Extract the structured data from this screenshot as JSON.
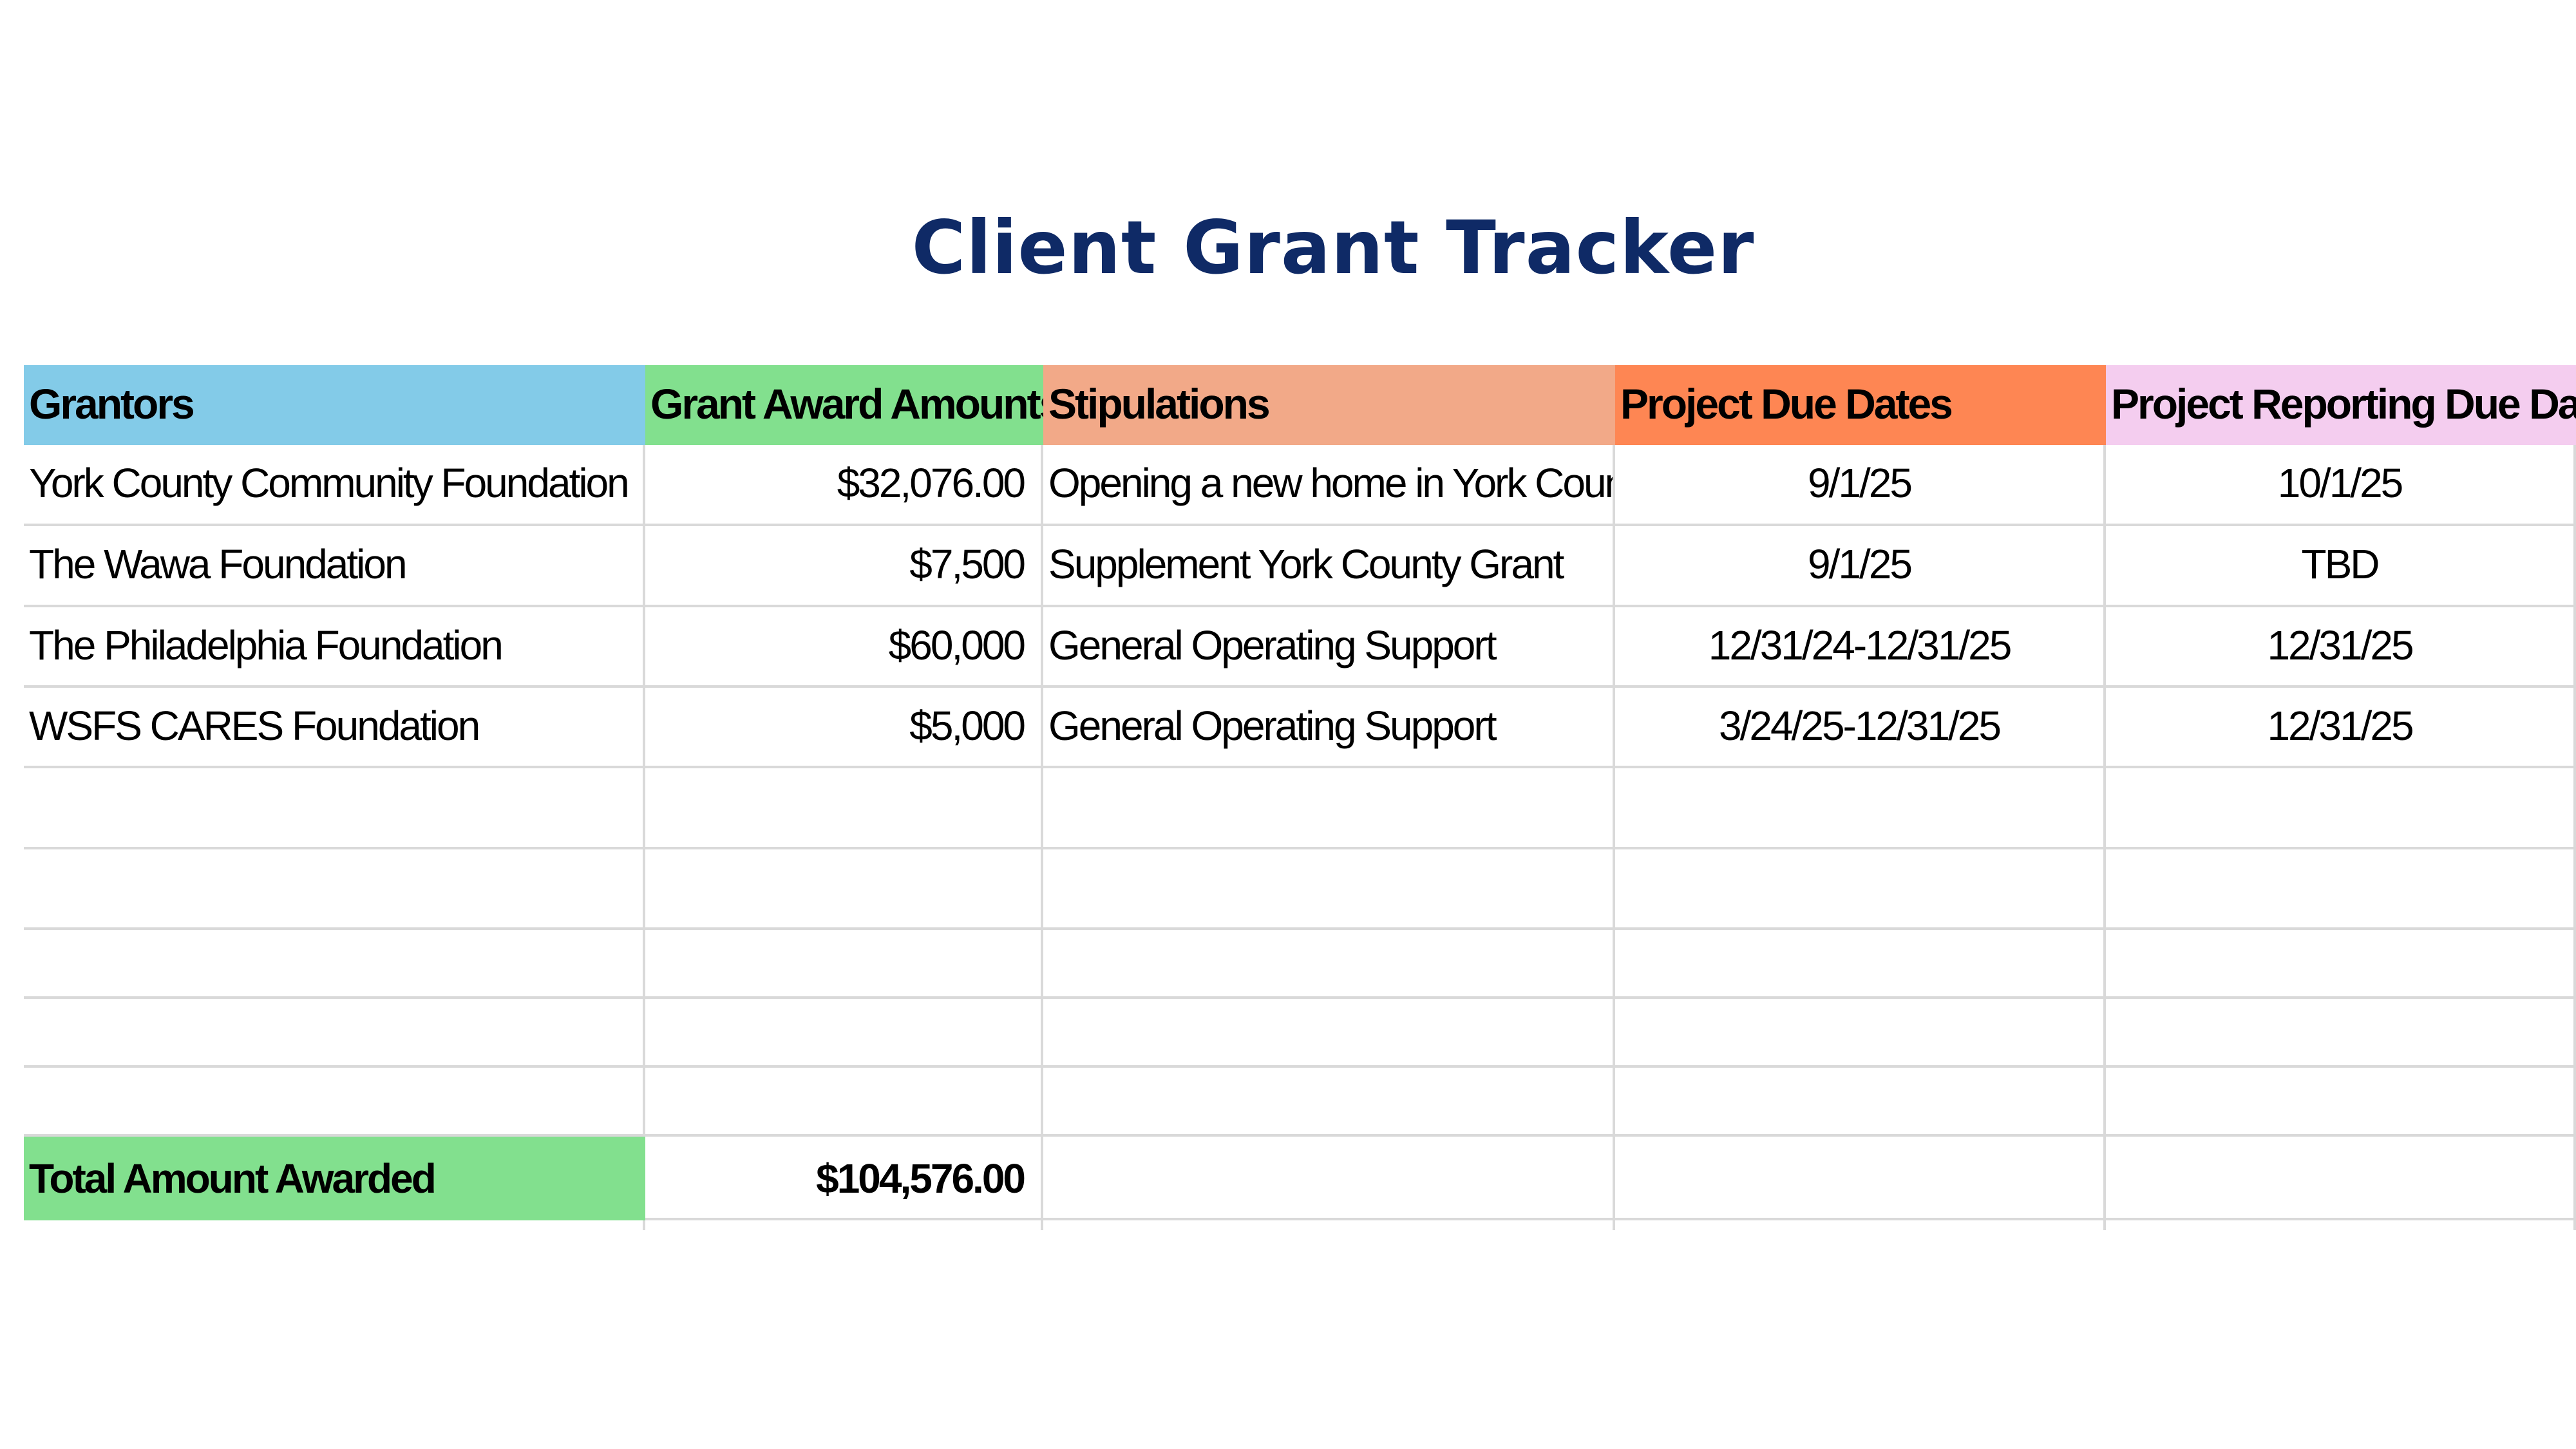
{
  "title": "Client Grant Tracker",
  "table": {
    "headers": [
      "Grantors",
      "Grant Award Amounts",
      "Stipulations",
      "Project Due Dates",
      "Project Reporting Due Dates"
    ],
    "rows": [
      [
        "York County Community Foundation",
        "$32,076.00",
        "Opening a new home in York County.",
        "9/1/25",
        "10/1/25"
      ],
      [
        "The Wawa Foundation",
        "$7,500",
        "Supplement York County Grant",
        "9/1/25",
        "TBD"
      ],
      [
        "The Philadelphia Foundation",
        "$60,000",
        "General Operating Support",
        "12/31/24-12/31/25",
        "12/31/25"
      ],
      [
        "WSFS CARES Foundation",
        "$5,000",
        "General Operating Support",
        "3/24/25-12/31/25",
        "12/31/25"
      ]
    ],
    "total": {
      "label": "Total Amount Awarded",
      "amount": "$104,576.00"
    }
  },
  "colors": {
    "title": "#0f2a66",
    "header_grantors": "#83cbe8",
    "header_amounts": "#82e08e",
    "header_stipulations": "#f2a988",
    "header_project_due": "#fe8653",
    "header_reporting_due": "#f4cdef",
    "total_label": "#82e08e",
    "gridline": "#d9d9d9"
  }
}
